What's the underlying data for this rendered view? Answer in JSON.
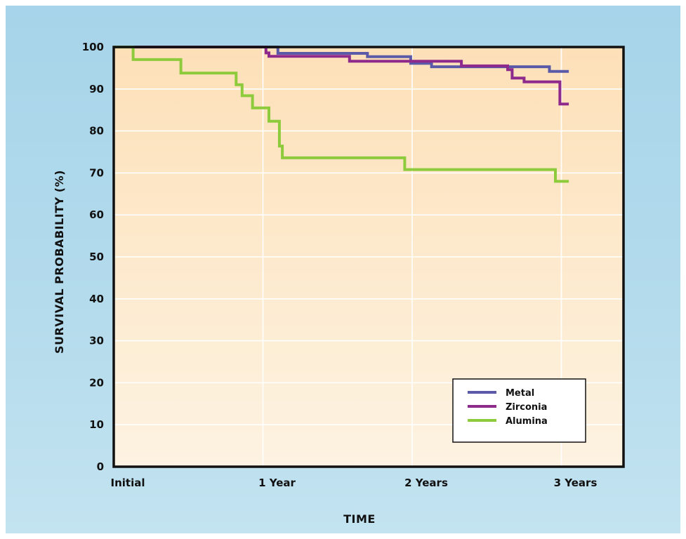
{
  "chart_data": {
    "type": "line",
    "step": true,
    "xlabel": "TIME",
    "ylabel": "SURVIVAL PROBABILITY (%)",
    "xlim": [
      0,
      3.3
    ],
    "ylim": [
      0,
      100
    ],
    "x_ticks": [
      0,
      1,
      2,
      3
    ],
    "x_tick_labels": [
      "Initial",
      "1 Year",
      "2 Years",
      "3 Years"
    ],
    "y_ticks": [
      0,
      10,
      20,
      30,
      40,
      50,
      60,
      70,
      80,
      90,
      100
    ],
    "y_tick_labels": [
      "0",
      "10",
      "20",
      "30",
      "40",
      "50",
      "60",
      "70",
      "80",
      "90",
      "100"
    ],
    "grid": true,
    "legend_position": "bottom-right",
    "series": [
      {
        "name": "Metal",
        "color": "#5b5aa8",
        "points": [
          [
            0,
            100
          ],
          [
            1.1,
            100
          ],
          [
            1.1,
            98.5
          ],
          [
            1.7,
            98.5
          ],
          [
            1.7,
            97.7
          ],
          [
            1.99,
            97.7
          ],
          [
            1.99,
            96.1
          ],
          [
            2.13,
            96.1
          ],
          [
            2.13,
            95.3
          ],
          [
            2.92,
            95.3
          ],
          [
            2.92,
            94.2
          ],
          [
            3.05,
            94.2
          ]
        ]
      },
      {
        "name": "Zirconia",
        "color": "#8e2a8c",
        "points": [
          [
            0,
            100
          ],
          [
            1.02,
            100
          ],
          [
            1.02,
            98.6
          ],
          [
            1.04,
            98.6
          ],
          [
            1.04,
            97.8
          ],
          [
            1.58,
            97.8
          ],
          [
            1.58,
            96.6
          ],
          [
            2.33,
            96.6
          ],
          [
            2.33,
            95.5
          ],
          [
            2.64,
            95.5
          ],
          [
            2.64,
            94.6
          ],
          [
            2.67,
            94.6
          ],
          [
            2.67,
            92.6
          ],
          [
            2.75,
            92.6
          ],
          [
            2.75,
            91.7
          ],
          [
            2.99,
            91.7
          ],
          [
            2.99,
            86.4
          ],
          [
            3.05,
            86.4
          ]
        ]
      },
      {
        "name": "Alumina",
        "color": "#8ecb3c",
        "points": [
          [
            0,
            100
          ],
          [
            0.13,
            100
          ],
          [
            0.13,
            97
          ],
          [
            0.45,
            97
          ],
          [
            0.45,
            93.8
          ],
          [
            0.82,
            93.8
          ],
          [
            0.82,
            91
          ],
          [
            0.86,
            91
          ],
          [
            0.86,
            88.4
          ],
          [
            0.93,
            88.4
          ],
          [
            0.93,
            85.5
          ],
          [
            1.04,
            85.5
          ],
          [
            1.04,
            82.3
          ],
          [
            1.11,
            82.3
          ],
          [
            1.11,
            76.4
          ],
          [
            1.13,
            76.4
          ],
          [
            1.13,
            73.6
          ],
          [
            1.95,
            73.6
          ],
          [
            1.95,
            70.8
          ],
          [
            2.96,
            70.8
          ],
          [
            2.96,
            68
          ],
          [
            3.05,
            68
          ]
        ]
      }
    ]
  }
}
